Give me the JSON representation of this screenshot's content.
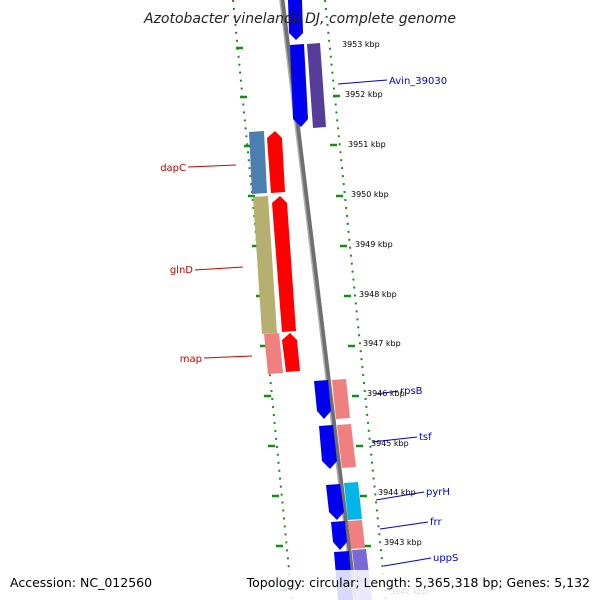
{
  "title": "Azotobacter vinelandii DJ, complete genome",
  "footer": {
    "accession": "Accession: NC_012560",
    "info": "Topology: circular; Length: 5,365,318 bp; Genes: 5,132"
  },
  "kbp_labels": [
    "3953 kbp",
    "3952 kbp",
    "3951 kbp",
    "3950 kbp",
    "3949 kbp",
    "3948 kbp",
    "3947 kbp",
    "3946 kbp",
    "3945 kbp",
    "3944 kbp",
    "3943 kbp",
    "3942 kbp"
  ],
  "gene_labels": [
    {
      "name": "Avin_39030",
      "color": "#0000cc"
    },
    {
      "name": "dapC",
      "color": "#cc0000"
    },
    {
      "name": "glnD",
      "color": "#cc0000"
    },
    {
      "name": "map",
      "color": "#cc0000"
    },
    {
      "name": "rpsB",
      "color": "#0000cc"
    },
    {
      "name": "tsf",
      "color": "#0000cc"
    },
    {
      "name": "pyrH",
      "color": "#0000cc"
    },
    {
      "name": "frr",
      "color": "#0000cc"
    },
    {
      "name": "uppS",
      "color": "#0000cc"
    }
  ],
  "colors": {
    "backbone": "#808080",
    "tick_green": "#1a8a1a",
    "cds_blue": "#0000ee",
    "cds_red": "#ff0000",
    "feature_purple": "#553d99",
    "feature_steelblue": "#4a7fb0",
    "feature_khaki": "#b5b070",
    "feature_salmon": "#f08080",
    "feature_cyan": "#00b5e8",
    "feature_lavender": "#7b68d8"
  }
}
